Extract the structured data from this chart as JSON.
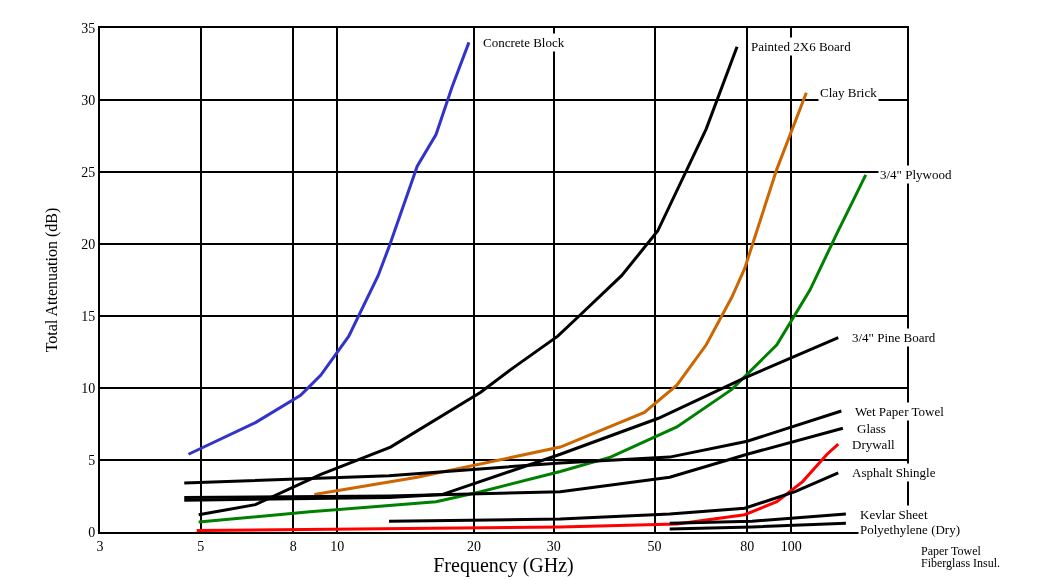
{
  "chart_data": {
    "type": "line",
    "xlabel": "Frequency (GHz)",
    "ylabel": "Total Attenuation (dB)",
    "log": "x",
    "grid": true,
    "legend": false,
    "xlim": [
      3,
      180
    ],
    "xticks": [
      3,
      5,
      8,
      10,
      20,
      30,
      50,
      80,
      100
    ],
    "ylim": [
      0,
      35
    ],
    "yticks": [
      0,
      5,
      10,
      15,
      20,
      25,
      30,
      35
    ],
    "series": [
      {
        "name": "Concrete Block",
        "color": "#3333cc",
        "x": [
          4.7,
          6.6,
          8.3,
          9.2,
          10.6,
          12.3,
          13.0,
          15.0,
          16.5,
          17.9,
          19.5
        ],
        "values": [
          5.4,
          7.6,
          9.5,
          10.9,
          13.6,
          17.8,
          19.8,
          25.4,
          27.6,
          30.9,
          34.0
        ]
      },
      {
        "name": "Painted 2X6 Board",
        "color": "#000000",
        "x": [
          4.95,
          6.6,
          9.2,
          13.1,
          20.7,
          24.4,
          30.6,
          34.1,
          42.3,
          50.8,
          65,
          76
        ],
        "values": [
          1.2,
          1.9,
          4.0,
          5.9,
          9.7,
          11.4,
          13.6,
          15.0,
          17.8,
          20.9,
          28.0,
          33.7
        ]
      },
      {
        "name": "Clay Brick",
        "color": "#cc6600",
        "x": [
          8.9,
          15.0,
          31,
          47.5,
          56,
          65,
          74,
          79,
          93,
          108
        ],
        "values": [
          2.6,
          3.8,
          5.9,
          8.3,
          10.2,
          13.0,
          16.3,
          18.3,
          25.2,
          30.5
        ]
      },
      {
        "name": "3/4\" Plywood",
        "color": "#008000",
        "x": [
          4.95,
          8.7,
          16.5,
          20.7,
          31,
          40,
          56,
          74,
          93,
          110,
          126,
          146
        ],
        "values": [
          0.7,
          1.4,
          2.1,
          2.8,
          4.2,
          5.2,
          7.3,
          9.9,
          13.0,
          16.8,
          20.7,
          24.8
        ]
      },
      {
        "name": "3/4\" Pine Board",
        "color": "#000000",
        "x": [
          4.6,
          13,
          17,
          31,
          51,
          79,
          127
        ],
        "values": [
          2.2,
          2.4,
          2.6,
          5.4,
          7.9,
          10.7,
          13.5
        ]
      },
      {
        "name": "Wet Paper Towel",
        "color": "#000000",
        "x": [
          4.6,
          13,
          31,
          54,
          80,
          129
        ],
        "values": [
          3.4,
          3.9,
          4.8,
          5.2,
          6.3,
          8.4
        ]
      },
      {
        "name": "Glass",
        "color": "#000000",
        "x": [
          4.6,
          13,
          31,
          54,
          80,
          130
        ],
        "values": [
          2.4,
          2.5,
          2.8,
          3.8,
          5.4,
          7.2
        ]
      },
      {
        "name": "Drywall",
        "color": "#ff0000",
        "x": [
          4.9,
          31,
          56,
          79,
          93,
          106,
          120,
          127
        ],
        "values": [
          0.1,
          0.35,
          0.55,
          1.2,
          2.1,
          3.5,
          5.4,
          6.1
        ]
      },
      {
        "name": "Asphalt Shingle",
        "color": "#000000",
        "x": [
          13,
          31,
          54,
          79,
          102,
          127
        ],
        "values": [
          0.75,
          0.9,
          1.25,
          1.65,
          2.8,
          4.1
        ]
      },
      {
        "name": "Kevlar Sheet",
        "color": "#000000",
        "x": [
          54,
          82,
          132
        ],
        "values": [
          0.6,
          0.75,
          1.25
        ]
      },
      {
        "name": "Polyethylene (Dry)",
        "color": "#000000",
        "x": [
          54,
          82,
          132
        ],
        "values": [
          0.2,
          0.35,
          0.6
        ]
      }
    ],
    "annotations": [
      "Paper Towel",
      "Fiberglass Insul."
    ]
  }
}
